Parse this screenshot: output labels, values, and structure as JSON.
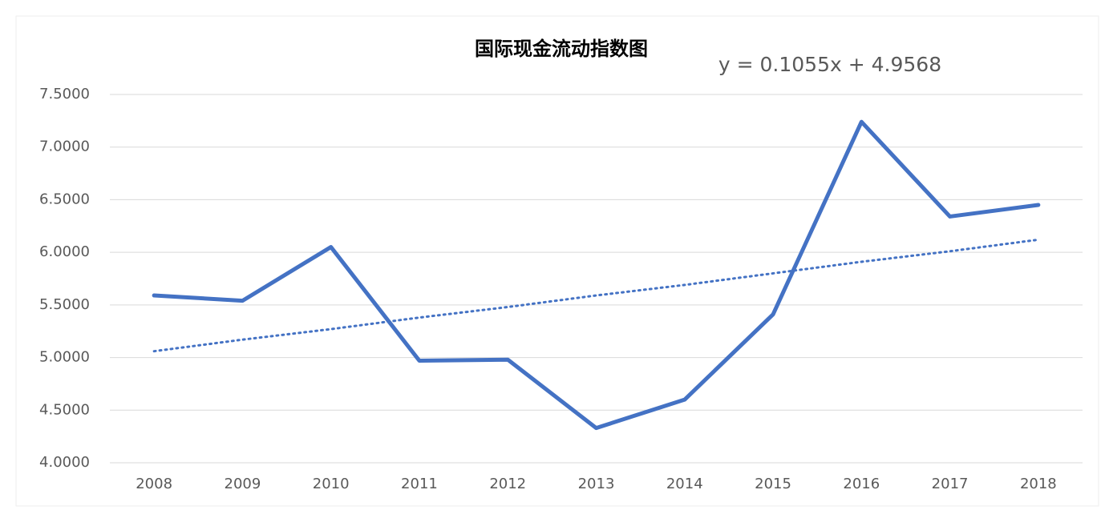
{
  "chart_data": {
    "type": "line",
    "title": "国际现金流动指数图",
    "annotation": "y = 0.1055x + 4.9568",
    "categories": [
      "2008",
      "2009",
      "2010",
      "2011",
      "2012",
      "2013",
      "2014",
      "2015",
      "2016",
      "2017",
      "2018"
    ],
    "values": [
      5.59,
      5.54,
      6.05,
      4.97,
      4.98,
      4.33,
      4.6,
      5.41,
      7.24,
      6.34,
      6.45
    ],
    "color": "#4472c4",
    "trendline": {
      "values": [
        5.06,
        5.17,
        5.27,
        5.38,
        5.48,
        5.59,
        5.69,
        5.8,
        5.91,
        6.01,
        6.12
      ],
      "color": "#4472c4",
      "style": "dotted"
    },
    "ylim": [
      4,
      7.5
    ],
    "yticks": [
      {
        "value": 4,
        "label": "4.0000"
      },
      {
        "value": 4.5,
        "label": "4.5000"
      },
      {
        "value": 5,
        "label": "5.0000"
      },
      {
        "value": 5.5,
        "label": "5.5000"
      },
      {
        "value": 6,
        "label": "6.0000"
      },
      {
        "value": 6.5,
        "label": "6.5000"
      },
      {
        "value": 7,
        "label": "7.0000"
      },
      {
        "value": 7.5,
        "label": "7.5000"
      }
    ],
    "grid": true
  }
}
